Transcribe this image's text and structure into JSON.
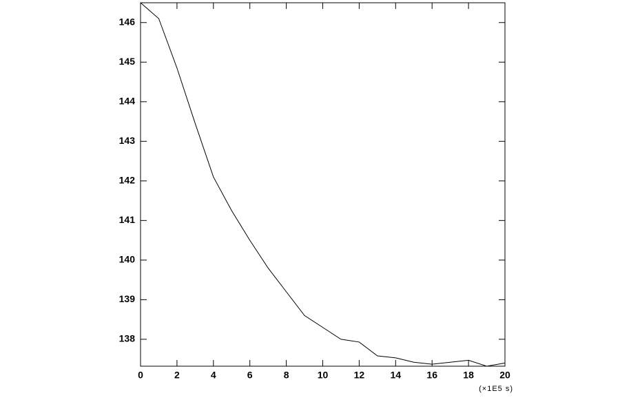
{
  "chart_data": {
    "type": "line",
    "x": [
      0,
      1,
      2,
      3,
      4,
      5,
      6,
      7,
      8,
      9,
      10,
      11,
      12,
      13,
      14,
      15,
      16,
      17,
      18,
      19,
      20
    ],
    "series": [
      {
        "color": "#000000",
        "values": [
          146.5,
          146.1,
          144.85,
          143.45,
          142.1,
          141.25,
          140.5,
          139.8,
          139.2,
          138.6,
          138.3,
          138.0,
          137.93,
          137.58,
          137.53,
          137.42,
          137.37,
          137.42,
          137.47,
          137.32,
          137.4
        ]
      }
    ],
    "xlim": [
      0,
      20
    ],
    "xticks": [
      0,
      2,
      4,
      6,
      8,
      10,
      12,
      14,
      16,
      18,
      20
    ],
    "ylim": [
      137.32,
      146.5
    ],
    "yticks": [
      138,
      139,
      140,
      141,
      142,
      143,
      144,
      145,
      146
    ],
    "x_unit_label": "(×1E5 s)"
  }
}
